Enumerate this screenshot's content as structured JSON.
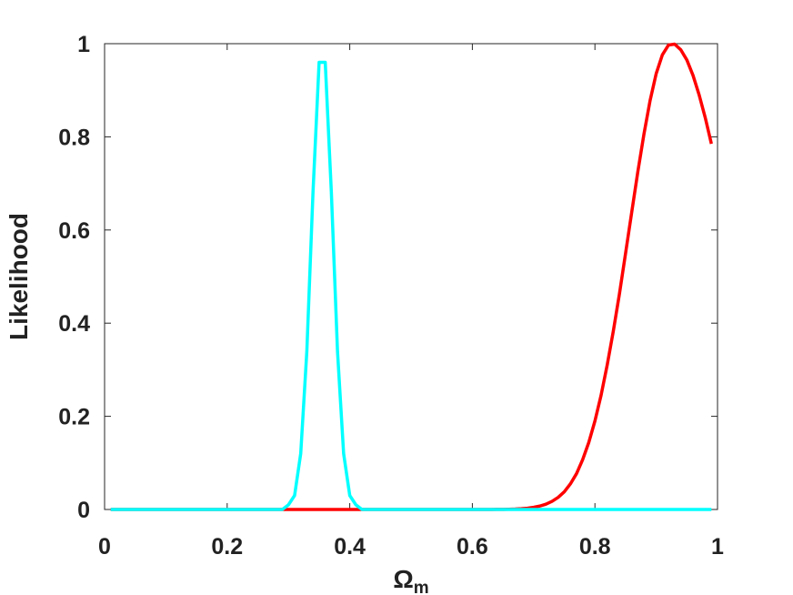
{
  "chart_data": {
    "type": "line",
    "ylabel": "Likelihood",
    "xlabel": "Ω",
    "xlabel_subscript": "m",
    "xlim": [
      0,
      1
    ],
    "xticks": [
      0,
      0.2,
      0.4,
      0.6,
      0.8,
      1
    ],
    "ylim": [
      0,
      1
    ],
    "yticks": [
      0,
      0.2,
      0.4,
      0.6,
      0.8,
      1
    ],
    "grid": false,
    "x": [
      0.01,
      0.02,
      0.03,
      0.04,
      0.05,
      0.06,
      0.07,
      0.08,
      0.09,
      0.1,
      0.11,
      0.12,
      0.13,
      0.14,
      0.15,
      0.16,
      0.17,
      0.18,
      0.19,
      0.2,
      0.21,
      0.22,
      0.23,
      0.24,
      0.25,
      0.26,
      0.27,
      0.28,
      0.29,
      0.3,
      0.31,
      0.32,
      0.33,
      0.34,
      0.35,
      0.36,
      0.37,
      0.38,
      0.39,
      0.4,
      0.41,
      0.42,
      0.43,
      0.44,
      0.45,
      0.46,
      0.47,
      0.48,
      0.49,
      0.5,
      0.51,
      0.52,
      0.53,
      0.54,
      0.55,
      0.56,
      0.57,
      0.58,
      0.59,
      0.6,
      0.61,
      0.62,
      0.63,
      0.64,
      0.65,
      0.66,
      0.67,
      0.68,
      0.69,
      0.7,
      0.71,
      0.72,
      0.73,
      0.74,
      0.75,
      0.76,
      0.77,
      0.78,
      0.79,
      0.8,
      0.81,
      0.82,
      0.83,
      0.84,
      0.85,
      0.86,
      0.87,
      0.88,
      0.89,
      0.9,
      0.91,
      0.92,
      0.93,
      0.94,
      0.95,
      0.96,
      0.97,
      0.98,
      0.99
    ],
    "series": [
      {
        "color": "#ff0000",
        "values": [
          0,
          0,
          0,
          0,
          0,
          0,
          0,
          0,
          0,
          0,
          0,
          0,
          0,
          0,
          0,
          0,
          0,
          0,
          0,
          0,
          0,
          0,
          0,
          0,
          0,
          0,
          0,
          0,
          0,
          0,
          0,
          0,
          0,
          0,
          0,
          0,
          0,
          0,
          0,
          0,
          0,
          0,
          0,
          0,
          0,
          0,
          0,
          0,
          0,
          0,
          0,
          0,
          0,
          0,
          0,
          0,
          0,
          0,
          0,
          0,
          0,
          0,
          0,
          0.0002,
          0.0003,
          0.0006,
          0.001,
          0.0017,
          0.0028,
          0.0046,
          0.0073,
          0.0114,
          0.0175,
          0.026,
          0.038,
          0.055,
          0.077,
          0.107,
          0.144,
          0.19,
          0.245,
          0.31,
          0.383,
          0.463,
          0.55,
          0.638,
          0.725,
          0.806,
          0.878,
          0.936,
          0.976,
          0.997,
          0.999,
          0.987,
          0.965,
          0.932,
          0.89,
          0.841,
          0.785
        ]
      },
      {
        "color": "#00ffff",
        "values": [
          0,
          0,
          0,
          0,
          0,
          0,
          0,
          0,
          0,
          0,
          0,
          0,
          0,
          0,
          0,
          0,
          0,
          0,
          0,
          0,
          0,
          0,
          0,
          0,
          0,
          0,
          0,
          0,
          0,
          0.01,
          0.03,
          0.12,
          0.34,
          0.68,
          0.96,
          0.96,
          0.68,
          0.34,
          0.12,
          0.03,
          0.01,
          0,
          0,
          0,
          0,
          0,
          0,
          0,
          0,
          0,
          0,
          0,
          0,
          0,
          0,
          0,
          0,
          0,
          0,
          0,
          0,
          0,
          0,
          0,
          0,
          0,
          0,
          0,
          0,
          0,
          0,
          0,
          0,
          0,
          0,
          0,
          0,
          0,
          0,
          0,
          0,
          0,
          0,
          0,
          0,
          0,
          0,
          0,
          0,
          0,
          0,
          0,
          0,
          0,
          0,
          0,
          0,
          0,
          0
        ]
      }
    ]
  }
}
